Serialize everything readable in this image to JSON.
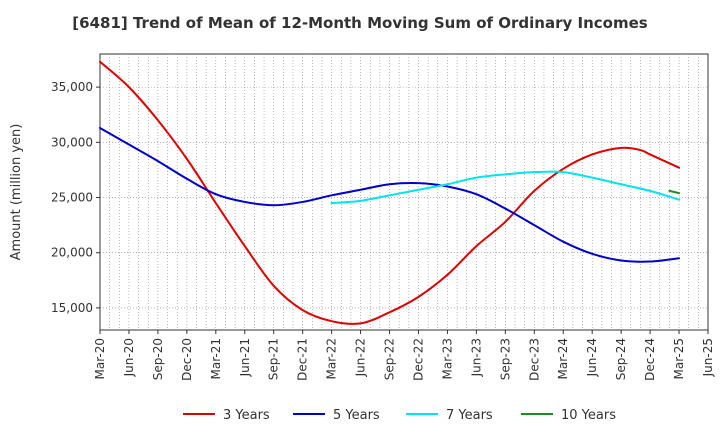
{
  "chart_data": {
    "type": "line",
    "title": "[6481]  Trend of Mean of 12-Month Moving Sum of Ordinary Incomes",
    "xlabel": "",
    "ylabel": "Amount (million yen)",
    "ylim": [
      13000,
      38000
    ],
    "yticks": [
      15000,
      20000,
      25000,
      30000,
      35000
    ],
    "ytick_labels": [
      "15,000",
      "20,000",
      "25,000",
      "30,000",
      "35,000"
    ],
    "xlim": [
      0,
      63
    ],
    "x_tick_positions": [
      0,
      3,
      6,
      9,
      12,
      15,
      18,
      21,
      24,
      27,
      30,
      33,
      36,
      39,
      42,
      45,
      48,
      51,
      54,
      57,
      60,
      63
    ],
    "x_tick_labels": [
      "Mar-20",
      "Jun-20",
      "Sep-20",
      "Dec-20",
      "Mar-21",
      "Jun-21",
      "Sep-21",
      "Dec-21",
      "Mar-22",
      "Jun-22",
      "Sep-22",
      "Dec-22",
      "Mar-23",
      "Jun-23",
      "Sep-23",
      "Dec-23",
      "Mar-24",
      "Jun-24",
      "Sep-24",
      "Dec-24",
      "Mar-25",
      "Jun-25"
    ],
    "grid": true,
    "legend_position": "bottom",
    "series": [
      {
        "name": "3 Years",
        "color": "#dd0000",
        "x": [
          0,
          3,
          6,
          9,
          12,
          15,
          18,
          21,
          24,
          27,
          30,
          33,
          36,
          39,
          42,
          45,
          48,
          51,
          54,
          56,
          57,
          60
        ],
        "values": [
          37300,
          35000,
          32000,
          28500,
          24500,
          20600,
          17000,
          14800,
          13800,
          13600,
          14600,
          16000,
          18000,
          20600,
          22800,
          25600,
          27600,
          28900,
          29500,
          29300,
          28900,
          27700
        ]
      },
      {
        "name": "5 Years",
        "color": "#0000cc",
        "x": [
          0,
          3,
          6,
          9,
          12,
          15,
          18,
          21,
          24,
          27,
          30,
          33,
          36,
          39,
          42,
          45,
          48,
          51,
          54,
          57,
          60
        ],
        "values": [
          31300,
          29800,
          28300,
          26700,
          25300,
          24600,
          24300,
          24600,
          25200,
          25700,
          26200,
          26300,
          26000,
          25300,
          24000,
          22500,
          21000,
          19900,
          19300,
          19200,
          19500
        ]
      },
      {
        "name": "7 Years",
        "color": "#00e5ee",
        "x": [
          24,
          27,
          30,
          33,
          36,
          39,
          42,
          45,
          48,
          51,
          54,
          57,
          60
        ],
        "values": [
          24500,
          24700,
          25200,
          25700,
          26200,
          26800,
          27100,
          27300,
          27300,
          26800,
          26200,
          25600,
          24800
        ]
      },
      {
        "name": "10 Years",
        "color": "#228b22",
        "x": [
          59,
          60
        ],
        "values": [
          25600,
          25400
        ]
      }
    ]
  }
}
